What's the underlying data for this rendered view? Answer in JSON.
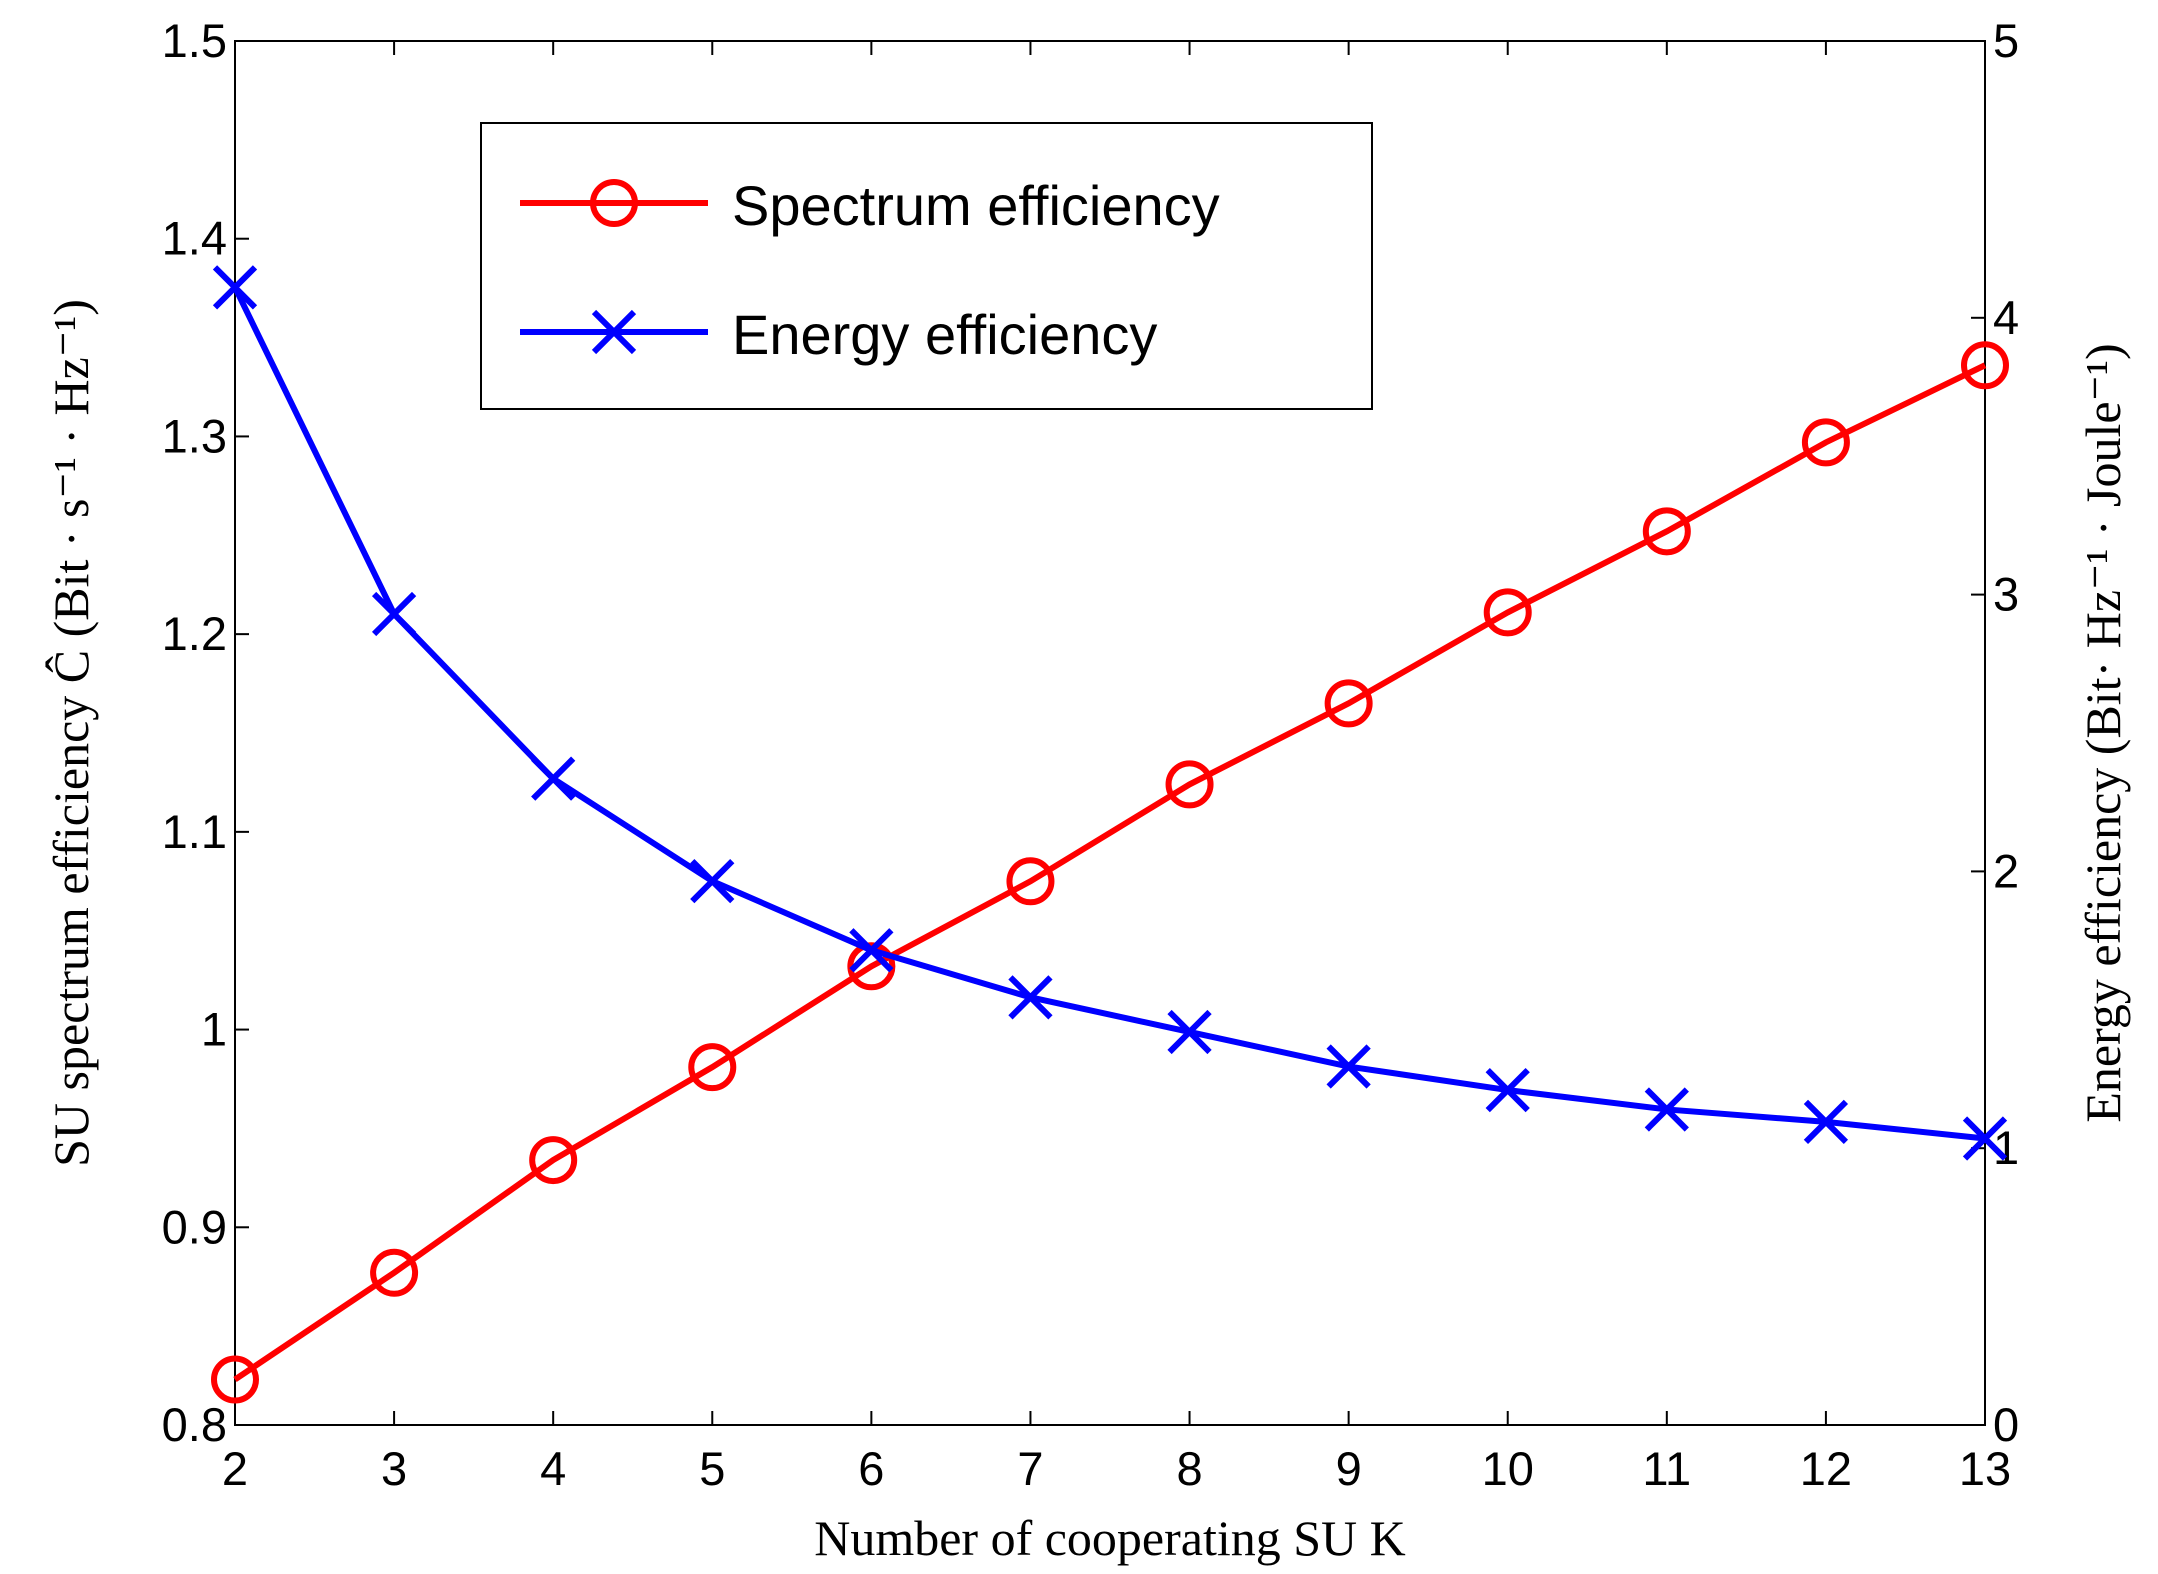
{
  "chart_data": {
    "type": "line",
    "xlabel": "Number of cooperating SU K",
    "ylabel_left": "SU spectrum efficiency  Ĉ  (Bit · s⁻¹ · Hz⁻¹)",
    "ylabel_right": "Energy  efficiency  (Bit· Hz⁻¹ · Joule⁻¹)",
    "x": [
      2,
      3,
      4,
      5,
      6,
      7,
      8,
      9,
      10,
      11,
      12,
      13
    ],
    "xlim": [
      2,
      13
    ],
    "ylim_left": [
      0.8,
      1.5
    ],
    "ylim_right": [
      0,
      5
    ],
    "xticks": [
      "2",
      "3",
      "4",
      "5",
      "6",
      "7",
      "8",
      "9",
      "10",
      "11",
      "12",
      "13"
    ],
    "yticks_left": [
      "0.8",
      "0.9",
      "1",
      "1.1",
      "1.2",
      "1.3",
      "1.4",
      "1.5"
    ],
    "yticks_right": [
      "0",
      "1",
      "2",
      "3",
      "4",
      "5"
    ],
    "legend_position": "top-left",
    "series": [
      {
        "name": "Spectrum efficiency",
        "axis": "left",
        "marker": "circle",
        "color": "#ff0000",
        "values": [
          0.823,
          0.877,
          0.934,
          0.981,
          1.032,
          1.075,
          1.124,
          1.165,
          1.211,
          1.252,
          1.297,
          1.336
        ]
      },
      {
        "name": "Energy efficiency",
        "axis": "right",
        "marker": "x",
        "color": "#0000ff",
        "values": [
          4.11,
          2.93,
          2.335,
          1.965,
          1.715,
          1.545,
          1.42,
          1.295,
          1.21,
          1.14,
          1.095,
          1.035
        ]
      }
    ]
  }
}
